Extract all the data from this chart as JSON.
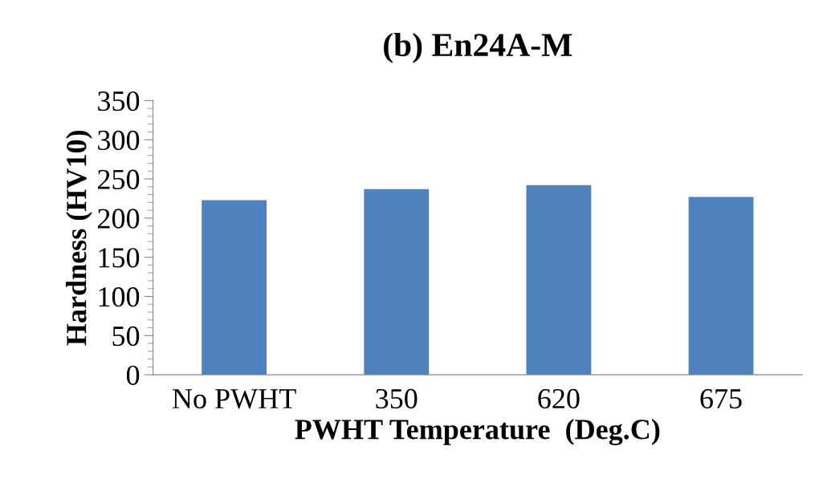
{
  "chart_data": {
    "type": "bar",
    "title": "(b) En24A-M",
    "xlabel": "PWHT Temperature  (Deg.C)",
    "ylabel": "Hardness (HV10)",
    "categories": [
      "No PWHT",
      "350",
      "620",
      "675"
    ],
    "values": [
      223,
      237,
      242,
      227
    ],
    "color": "#4f81bd",
    "ylim": [
      0,
      350
    ],
    "yticks": [
      0,
      50,
      100,
      150,
      200,
      250,
      300,
      350
    ],
    "grid": false,
    "legend": false
  }
}
